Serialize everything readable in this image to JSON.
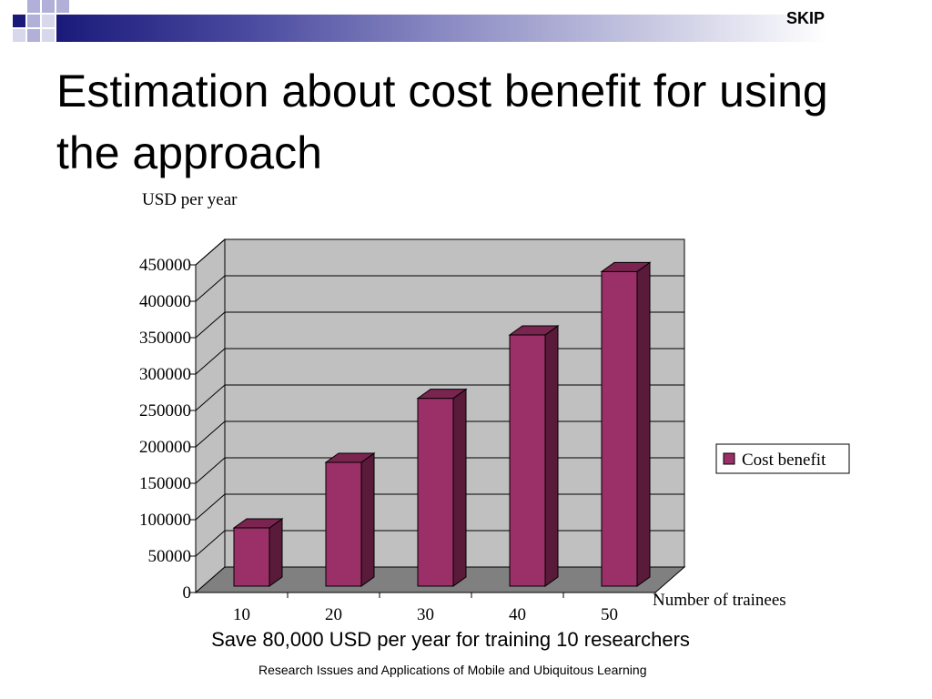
{
  "slide": {
    "brand": "SKIP",
    "title": "Estimation about cost benefit for using the approach",
    "caption": "Save 80,000 USD per year for training 10 researchers",
    "footer": "Research Issues and Applications of Mobile and Ubiquitous Learning"
  },
  "colors": {
    "bar_front": "#9b3068",
    "bar_side": "#5a1a3a",
    "bar_top": "#7a2450",
    "wall": "#c0c0c0",
    "floor": "#808080",
    "theme_navy": "#1a1a7a",
    "theme_lavender": "#a0a0d0"
  },
  "chart_data": {
    "type": "bar",
    "title": "",
    "ylabel": "USD per year",
    "xlabel": "Number of trainees",
    "categories": [
      "10",
      "20",
      "30",
      "40",
      "50"
    ],
    "series": [
      {
        "name": "Cost benefit",
        "values": [
          80000,
          170000,
          258000,
          345000,
          432000
        ]
      }
    ],
    "ylim": [
      0,
      450000
    ],
    "yticks": [
      0,
      50000,
      100000,
      150000,
      200000,
      250000,
      300000,
      350000,
      400000,
      450000
    ],
    "ytick_labels": [
      "0",
      "50000",
      "100000",
      "150000",
      "200000",
      "250000",
      "300000",
      "350000",
      "400000",
      "450000"
    ],
    "grid": true,
    "three_d": true,
    "legend_position": "right"
  }
}
